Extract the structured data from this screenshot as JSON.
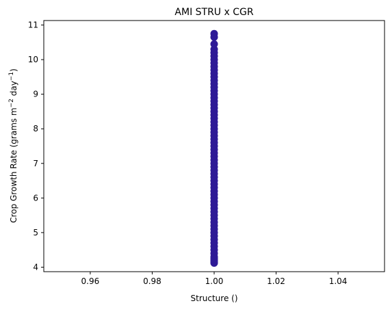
{
  "chart_data": {
    "type": "scatter",
    "title": "AMI STRU x CGR",
    "xlabel": "Structure ()",
    "ylabel_parts": {
      "prefix": "Crop Growth Rate (grams m",
      "sup1": "−2",
      "mid": " day",
      "sup2": "−1",
      "suffix": ")"
    },
    "xlim": [
      0.945,
      1.055
    ],
    "ylim": [
      3.87,
      11.13
    ],
    "xticks": [
      0.96,
      0.98,
      1.0,
      1.02,
      1.04
    ],
    "xtick_labels": [
      "0.96",
      "0.98",
      "1.00",
      "1.02",
      "1.04"
    ],
    "yticks": [
      4,
      5,
      6,
      7,
      8,
      9,
      10,
      11
    ],
    "ytick_labels": [
      "4",
      "5",
      "6",
      "7",
      "8",
      "9",
      "10",
      "11"
    ],
    "grid": false,
    "marker_color": "#2e1a96",
    "series": [
      {
        "x": 1.0,
        "y": [
          4.12,
          4.15,
          4.2,
          4.25,
          4.3,
          4.4,
          4.5,
          4.6,
          4.7,
          4.8,
          4.9,
          5.0,
          5.1,
          5.2,
          5.3,
          5.4,
          5.5,
          5.6,
          5.7,
          5.8,
          5.9,
          6.0,
          6.1,
          6.2,
          6.3,
          6.4,
          6.5,
          6.6,
          6.7,
          6.8,
          6.9,
          7.0,
          7.1,
          7.2,
          7.3,
          7.4,
          7.5,
          7.6,
          7.7,
          7.8,
          7.9,
          8.0,
          8.1,
          8.2,
          8.3,
          8.4,
          8.5,
          8.6,
          8.7,
          8.8,
          8.9,
          9.0,
          9.1,
          9.2,
          9.3,
          9.4,
          9.5,
          9.6,
          9.7,
          9.8,
          9.9,
          10.0,
          10.1,
          10.2,
          10.3,
          10.45,
          10.65,
          10.75
        ]
      }
    ]
  }
}
